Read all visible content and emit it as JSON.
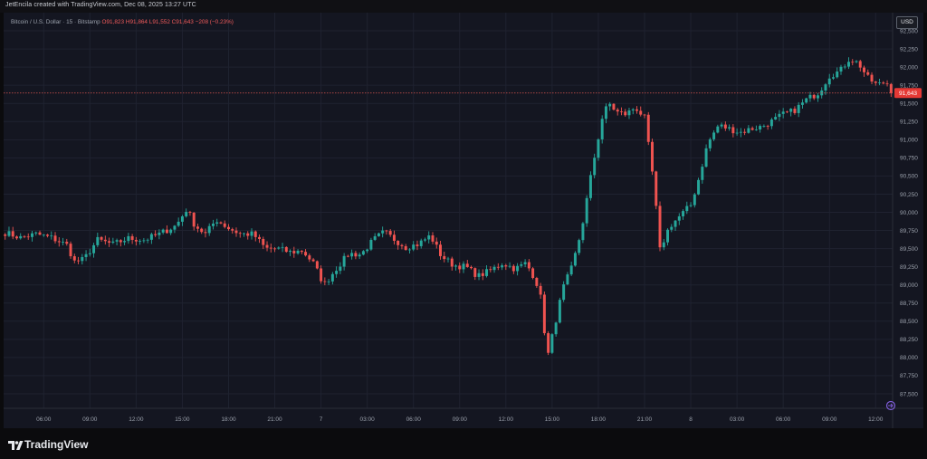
{
  "header": {
    "credit": "JetEncila created with TradingView.com, Dec 08, 2025 13:27 UTC"
  },
  "legend": {
    "symbol": "Bitcoin / U.S. Dollar · 15 · Bitstamp",
    "open": "O91,823",
    "high": "H91,864",
    "low": "L91,552",
    "close": "C91,643",
    "change": "−208 (−0.23%)"
  },
  "currency_button": "USD",
  "last_price_label": "91,643",
  "footer": {
    "brand": "TradingView",
    "logo_icon": "tradingview-logo-icon"
  },
  "colors": {
    "up": "#26a69a",
    "down": "#ef5350",
    "price_line": "#d9534f",
    "background": "#141621",
    "grid": "#1f2230",
    "axis_text": "#9aa0ab"
  },
  "chart_data": {
    "type": "candlestick",
    "title": "",
    "interval": "15",
    "exchange": "Bitstamp",
    "grid": true,
    "legend": "top-left",
    "ylim": [
      87300,
      92750
    ],
    "yticks": [
      87500,
      87750,
      88000,
      88250,
      88500,
      88750,
      89000,
      89250,
      89500,
      89750,
      90000,
      90250,
      90500,
      90750,
      91000,
      91250,
      91500,
      91750,
      92000,
      92250,
      92500
    ],
    "ytick_labels": [
      "87,500",
      "87,750",
      "88,000",
      "88,250",
      "88,500",
      "88,750",
      "89,000",
      "89,250",
      "89,500",
      "89,750",
      "90,000",
      "90,250",
      "90,500",
      "90,750",
      "91,000",
      "91,250",
      "91,500",
      "91,750",
      "92,000",
      "92,250",
      "92,500"
    ],
    "xlim_hours": [
      -2.6,
      55.1
    ],
    "xticks": [
      {
        "label": "06:00",
        "h": 0
      },
      {
        "label": "09:00",
        "h": 3
      },
      {
        "label": "12:00",
        "h": 6
      },
      {
        "label": "15:00",
        "h": 9
      },
      {
        "label": "18:00",
        "h": 12
      },
      {
        "label": "21:00",
        "h": 15
      },
      {
        "label": "7",
        "h": 18
      },
      {
        "label": "03:00",
        "h": 21
      },
      {
        "label": "06:00",
        "h": 24
      },
      {
        "label": "09:00",
        "h": 27
      },
      {
        "label": "12:00",
        "h": 30
      },
      {
        "label": "15:00",
        "h": 33
      },
      {
        "label": "18:00",
        "h": 36
      },
      {
        "label": "21:00",
        "h": 39
      },
      {
        "label": "8",
        "h": 42
      },
      {
        "label": "03:00",
        "h": 45
      },
      {
        "label": "06:00",
        "h": 48
      },
      {
        "label": "09:00",
        "h": 51
      },
      {
        "label": "12:00",
        "h": 54
      }
    ],
    "last_price": 91643,
    "anchors": [
      [
        -2.5,
        89720
      ],
      [
        -1.5,
        89650
      ],
      [
        -0.5,
        89700
      ],
      [
        0.5,
        89650
      ],
      [
        1.5,
        89550
      ],
      [
        2.0,
        89320
      ],
      [
        2.6,
        89350
      ],
      [
        3.5,
        89620
      ],
      [
        4.5,
        89560
      ],
      [
        5.5,
        89640
      ],
      [
        6.5,
        89620
      ],
      [
        7.5,
        89700
      ],
      [
        8.6,
        89820
      ],
      [
        9.3,
        90050
      ],
      [
        9.8,
        89820
      ],
      [
        10.5,
        89700
      ],
      [
        11.2,
        89900
      ],
      [
        12.0,
        89780
      ],
      [
        12.8,
        89700
      ],
      [
        13.6,
        89700
      ],
      [
        14.4,
        89500
      ],
      [
        15.2,
        89500
      ],
      [
        16.0,
        89450
      ],
      [
        16.8,
        89470
      ],
      [
        17.5,
        89300
      ],
      [
        18.2,
        89000
      ],
      [
        18.9,
        89200
      ],
      [
        19.8,
        89430
      ],
      [
        20.6,
        89420
      ],
      [
        21.4,
        89620
      ],
      [
        22.1,
        89730
      ],
      [
        22.8,
        89620
      ],
      [
        23.5,
        89520
      ],
      [
        24.3,
        89560
      ],
      [
        25.1,
        89680
      ],
      [
        25.8,
        89400
      ],
      [
        26.6,
        89270
      ],
      [
        27.4,
        89250
      ],
      [
        28.2,
        89120
      ],
      [
        29.0,
        89200
      ],
      [
        29.8,
        89300
      ],
      [
        30.6,
        89220
      ],
      [
        31.3,
        89300
      ],
      [
        31.8,
        89120
      ],
      [
        32.2,
        88920
      ],
      [
        32.7,
        88000
      ],
      [
        33.1,
        88380
      ],
      [
        33.7,
        88950
      ],
      [
        34.3,
        89250
      ],
      [
        34.9,
        89750
      ],
      [
        35.6,
        90600
      ],
      [
        36.3,
        91350
      ],
      [
        36.7,
        91500
      ],
      [
        37.2,
        91380
      ],
      [
        37.8,
        91350
      ],
      [
        38.4,
        91450
      ],
      [
        39.0,
        91300
      ],
      [
        39.6,
        90400
      ],
      [
        40.0,
        89480
      ],
      [
        40.6,
        89800
      ],
      [
        41.3,
        89950
      ],
      [
        42.0,
        90100
      ],
      [
        42.5,
        90450
      ],
      [
        43.1,
        90950
      ],
      [
        43.8,
        91200
      ],
      [
        44.5,
        91150
      ],
      [
        45.2,
        91100
      ],
      [
        45.9,
        91150
      ],
      [
        46.6,
        91180
      ],
      [
        47.3,
        91260
      ],
      [
        48.0,
        91350
      ],
      [
        48.7,
        91400
      ],
      [
        49.5,
        91550
      ],
      [
        50.3,
        91650
      ],
      [
        51.0,
        91880
      ],
      [
        51.7,
        91950
      ],
      [
        52.3,
        92120
      ],
      [
        52.9,
        92050
      ],
      [
        53.5,
        91850
      ],
      [
        54.1,
        91750
      ],
      [
        54.7,
        91800
      ],
      [
        55.0,
        91643
      ]
    ]
  }
}
